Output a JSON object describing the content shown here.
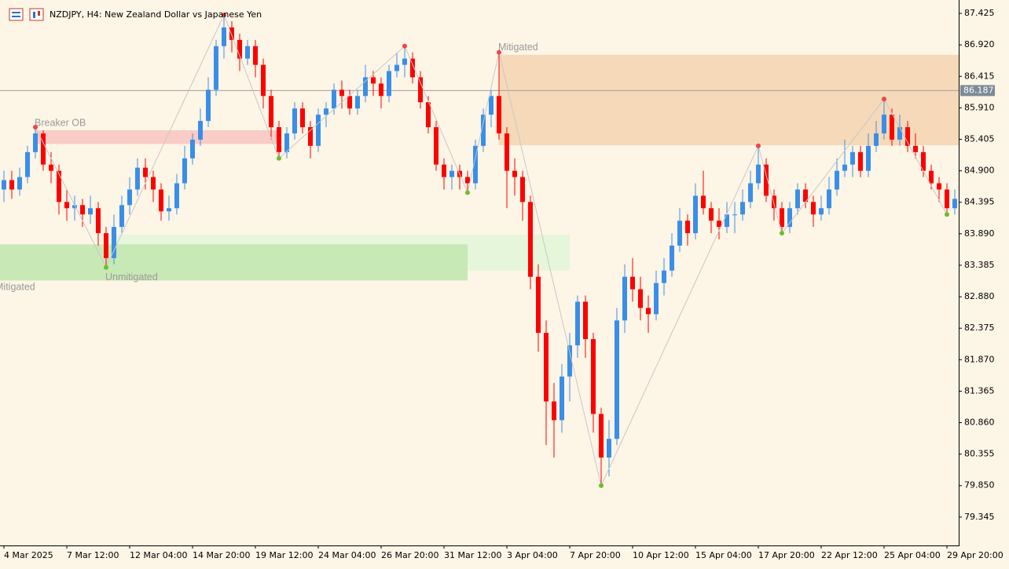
{
  "chart_data": {
    "type": "candlestick",
    "title": "NZDJPY, H4:  New Zealand Dollar vs Japanese Yen",
    "ylim": [
      78.89,
      87.64
    ],
    "yticks": [
      {
        "value": 87.425,
        "label": "87.425"
      },
      {
        "value": 86.92,
        "label": "86.920"
      },
      86.415,
      {
        "value": 85.91,
        "label": "85.910"
      },
      85.405,
      {
        "value": 84.9,
        "label": "84.900"
      },
      84.395,
      {
        "value": 83.89,
        "label": "83.890"
      },
      83.385,
      {
        "value": 82.88,
        "label": "82.880"
      },
      82.375,
      {
        "value": 81.87,
        "label": "81.870"
      },
      81.365,
      {
        "value": 80.86,
        "label": "80.860"
      },
      80.355,
      {
        "value": 79.85,
        "label": "79.850"
      },
      79.345
    ],
    "current_price": 86.187,
    "categories": [
      "4 Mar 2025",
      null,
      null,
      null,
      null,
      null,
      null,
      null,
      "7 Mar 12:00",
      null,
      null,
      null,
      null,
      null,
      null,
      null,
      "12 Mar 04:00",
      null,
      null,
      null,
      null,
      null,
      null,
      null,
      "14 Mar 20:00",
      null,
      null,
      null,
      null,
      null,
      null,
      null,
      "19 Mar 12:00",
      null,
      null,
      null,
      null,
      null,
      null,
      null,
      "24 Mar 04:00",
      null,
      null,
      null,
      null,
      null,
      null,
      null,
      "26 Mar 20:00",
      null,
      null,
      null,
      null,
      null,
      null,
      null,
      "31 Mar 12:00",
      null,
      null,
      null,
      null,
      null,
      null,
      null,
      "3 Apr 04:00",
      null,
      null,
      null,
      null,
      null,
      null,
      null,
      "7 Apr 20:00",
      null,
      null,
      null,
      null,
      null,
      null,
      null,
      "10 Apr 12:00",
      null,
      null,
      null,
      null,
      null,
      null,
      null,
      "15 Apr 04:00",
      null,
      null,
      null,
      null,
      null,
      null,
      null,
      "17 Apr 20:00",
      null,
      null,
      null,
      null,
      null,
      null,
      null,
      "22 Apr 12:00",
      null,
      null,
      null,
      null,
      null,
      null,
      null,
      "25 Apr 04:00",
      null,
      null,
      null,
      null,
      null,
      null,
      null,
      "29 Apr 20:00",
      null
    ],
    "series": [
      {
        "name": "NZDJPY",
        "up_color": "#3a8ee8",
        "down_color": "#ff0000",
        "ohlc": [
          [
            84.6,
            84.9,
            84.4,
            84.75
          ],
          [
            84.75,
            84.9,
            84.45,
            84.6
          ],
          [
            84.6,
            84.95,
            84.5,
            84.8
          ],
          [
            84.8,
            85.3,
            84.7,
            85.2
          ],
          [
            85.2,
            85.6,
            85.1,
            85.5
          ],
          [
            85.5,
            85.55,
            84.9,
            85.0
          ],
          [
            85.0,
            85.2,
            84.7,
            84.9
          ],
          [
            84.9,
            85.0,
            84.2,
            84.4
          ],
          [
            84.4,
            84.6,
            84.1,
            84.3
          ],
          [
            84.3,
            84.5,
            84.1,
            84.35
          ],
          [
            84.35,
            84.45,
            84.0,
            84.2
          ],
          [
            84.2,
            84.5,
            84.05,
            84.3
          ],
          [
            84.3,
            84.4,
            83.7,
            83.9
          ],
          [
            83.9,
            84.0,
            83.35,
            83.5
          ],
          [
            83.5,
            84.2,
            83.4,
            84.0
          ],
          [
            84.0,
            84.5,
            83.9,
            84.35
          ],
          [
            84.35,
            84.8,
            84.2,
            84.6
          ],
          [
            84.6,
            85.1,
            84.5,
            84.95
          ],
          [
            84.95,
            85.1,
            84.6,
            84.8
          ],
          [
            84.8,
            84.9,
            84.4,
            84.6
          ],
          [
            84.6,
            84.7,
            84.1,
            84.25
          ],
          [
            84.25,
            84.5,
            84.1,
            84.3
          ],
          [
            84.3,
            84.85,
            84.2,
            84.7
          ],
          [
            84.7,
            85.3,
            84.6,
            85.1
          ],
          [
            85.1,
            85.5,
            85.0,
            85.4
          ],
          [
            85.4,
            85.9,
            85.3,
            85.7
          ],
          [
            85.7,
            86.4,
            85.6,
            86.2
          ],
          [
            86.2,
            87.0,
            86.1,
            86.9
          ],
          [
            86.9,
            87.4,
            86.7,
            87.2
          ],
          [
            87.2,
            87.3,
            86.8,
            87.0
          ],
          [
            87.0,
            87.1,
            86.5,
            86.7
          ],
          [
            86.7,
            87.0,
            86.6,
            86.9
          ],
          [
            86.9,
            87.0,
            86.4,
            86.6
          ],
          [
            86.6,
            86.7,
            85.9,
            86.1
          ],
          [
            86.1,
            86.2,
            85.4,
            85.6
          ],
          [
            85.6,
            85.7,
            85.1,
            85.2
          ],
          [
            85.2,
            85.6,
            85.1,
            85.5
          ],
          [
            85.5,
            86.0,
            85.4,
            85.9
          ],
          [
            85.9,
            86.0,
            85.5,
            85.6
          ],
          [
            85.6,
            85.7,
            85.1,
            85.3
          ],
          [
            85.3,
            85.9,
            85.2,
            85.8
          ],
          [
            85.8,
            86.0,
            85.6,
            85.9
          ],
          [
            85.9,
            86.3,
            85.8,
            86.2
          ],
          [
            86.2,
            86.35,
            85.9,
            86.1
          ],
          [
            86.1,
            86.2,
            85.8,
            85.9
          ],
          [
            85.9,
            86.2,
            85.8,
            86.1
          ],
          [
            86.1,
            86.6,
            86.0,
            86.4
          ],
          [
            86.4,
            86.5,
            86.1,
            86.3
          ],
          [
            86.3,
            86.4,
            85.9,
            86.1
          ],
          [
            86.1,
            86.6,
            86.0,
            86.5
          ],
          [
            86.5,
            86.8,
            86.4,
            86.6
          ],
          [
            86.6,
            86.9,
            86.4,
            86.7
          ],
          [
            86.7,
            86.8,
            86.3,
            86.4
          ],
          [
            86.4,
            86.5,
            85.9,
            86.0
          ],
          [
            86.0,
            86.1,
            85.5,
            85.6
          ],
          [
            85.6,
            85.7,
            84.9,
            85.0
          ],
          [
            85.0,
            85.1,
            84.6,
            84.8
          ],
          [
            84.8,
            85.0,
            84.6,
            84.9
          ],
          [
            84.9,
            85.0,
            84.6,
            84.8
          ],
          [
            84.8,
            84.9,
            84.55,
            84.7
          ],
          [
            84.7,
            85.4,
            84.6,
            85.3
          ],
          [
            85.3,
            85.9,
            85.2,
            85.8
          ],
          [
            85.8,
            86.2,
            85.6,
            86.1
          ],
          [
            86.1,
            86.8,
            85.4,
            85.5
          ],
          [
            85.5,
            85.6,
            84.3,
            84.9
          ],
          [
            84.9,
            85.1,
            84.5,
            84.8
          ],
          [
            84.8,
            84.9,
            84.1,
            84.4
          ],
          [
            84.4,
            84.5,
            83.0,
            83.2
          ],
          [
            83.2,
            83.4,
            82.0,
            82.3
          ],
          [
            82.3,
            82.5,
            80.5,
            81.2
          ],
          [
            81.2,
            81.5,
            80.3,
            80.9
          ],
          [
            80.9,
            81.8,
            80.7,
            81.6
          ],
          [
            81.6,
            82.3,
            81.2,
            82.1
          ],
          [
            82.1,
            82.9,
            81.9,
            82.8
          ],
          [
            82.8,
            82.9,
            81.9,
            82.2
          ],
          [
            82.2,
            82.3,
            80.7,
            81.0
          ],
          [
            81.0,
            81.1,
            79.85,
            80.3
          ],
          [
            80.3,
            80.9,
            80.0,
            80.6
          ],
          [
            80.6,
            82.7,
            80.5,
            82.5
          ],
          [
            82.5,
            83.4,
            82.3,
            83.2
          ],
          [
            83.2,
            83.5,
            82.8,
            83.0
          ],
          [
            83.0,
            83.2,
            82.5,
            82.7
          ],
          [
            82.7,
            82.9,
            82.3,
            82.6
          ],
          [
            82.6,
            83.3,
            82.5,
            83.1
          ],
          [
            83.1,
            83.5,
            82.9,
            83.3
          ],
          [
            83.3,
            83.9,
            83.2,
            83.7
          ],
          [
            83.7,
            84.3,
            83.6,
            84.1
          ],
          [
            84.1,
            84.2,
            83.7,
            83.9
          ],
          [
            83.9,
            84.7,
            83.8,
            84.5
          ],
          [
            84.5,
            84.9,
            84.2,
            84.3
          ],
          [
            84.3,
            84.4,
            83.9,
            84.1
          ],
          [
            84.1,
            84.3,
            83.8,
            84.0
          ],
          [
            84.0,
            84.4,
            83.9,
            84.2
          ],
          [
            84.2,
            84.4,
            83.9,
            84.2
          ],
          [
            84.2,
            84.6,
            84.1,
            84.4
          ],
          [
            84.4,
            84.9,
            84.3,
            84.7
          ],
          [
            84.7,
            85.3,
            84.6,
            85.0
          ],
          [
            85.0,
            85.1,
            84.4,
            84.5
          ],
          [
            84.5,
            84.6,
            84.1,
            84.3
          ],
          [
            84.3,
            84.4,
            83.9,
            84.0
          ],
          [
            84.0,
            84.4,
            83.9,
            84.3
          ],
          [
            84.3,
            84.7,
            84.2,
            84.6
          ],
          [
            84.6,
            84.7,
            84.3,
            84.4
          ],
          [
            84.4,
            84.5,
            84.0,
            84.2
          ],
          [
            84.2,
            84.5,
            84.1,
            84.3
          ],
          [
            84.3,
            84.8,
            84.2,
            84.6
          ],
          [
            84.6,
            85.1,
            84.5,
            84.9
          ],
          [
            84.9,
            85.4,
            84.8,
            85.0
          ],
          [
            85.0,
            85.3,
            84.8,
            85.2
          ],
          [
            85.2,
            85.3,
            84.8,
            84.9
          ],
          [
            84.9,
            85.5,
            84.8,
            85.3
          ],
          [
            85.3,
            85.7,
            85.2,
            85.5
          ],
          [
            85.5,
            86.05,
            85.4,
            85.8
          ],
          [
            85.8,
            85.9,
            85.3,
            85.4
          ],
          [
            85.4,
            85.8,
            85.3,
            85.6
          ],
          [
            85.6,
            85.7,
            85.2,
            85.3
          ],
          [
            85.3,
            85.5,
            85.1,
            85.2
          ],
          [
            85.2,
            85.3,
            84.8,
            84.9
          ],
          [
            84.9,
            85.0,
            84.6,
            84.7
          ],
          [
            84.7,
            84.8,
            84.4,
            84.6
          ],
          [
            84.6,
            84.7,
            84.2,
            84.3
          ],
          [
            84.3,
            84.6,
            84.2,
            84.45
          ]
        ]
      }
    ],
    "swings": [
      {
        "bar": 4,
        "price": 85.6,
        "kind": "high"
      },
      {
        "bar": 13,
        "price": 83.35,
        "kind": "low"
      },
      {
        "bar": 28,
        "price": 87.4,
        "kind": "high"
      },
      {
        "bar": 35,
        "price": 85.1,
        "kind": "low"
      },
      {
        "bar": 51,
        "price": 86.9,
        "kind": "high"
      },
      {
        "bar": 59,
        "price": 84.55,
        "kind": "low"
      },
      {
        "bar": 63,
        "price": 86.8,
        "kind": "high"
      },
      {
        "bar": 76,
        "price": 79.85,
        "kind": "low"
      },
      {
        "bar": 96,
        "price": 85.3,
        "kind": "high"
      },
      {
        "bar": 99,
        "price": 83.9,
        "kind": "low"
      },
      {
        "bar": 112,
        "price": 86.05,
        "kind": "high"
      },
      {
        "bar": 120,
        "price": 84.2,
        "kind": "low"
      }
    ],
    "zones": [
      {
        "label": "Unmitigated",
        "top": 83.88,
        "bottom": 83.3,
        "from": 13,
        "to": 72,
        "color": "#e3f6d8",
        "label_pos": "below"
      },
      {
        "label": "Mitigated",
        "top": 83.72,
        "bottom": 83.14,
        "from": -1,
        "to": 59,
        "color": "#c2e8b0",
        "label_pos": "below"
      },
      {
        "label": "Breaker OB",
        "top": 85.55,
        "bottom": 85.33,
        "from": 4,
        "to": 35,
        "color": "#f8c8c2",
        "label_pos": "above"
      },
      {
        "label": "Mitigated",
        "top": 86.76,
        "bottom": 85.31,
        "from": 63,
        "to": 122,
        "color": "#f5d6b3",
        "label_pos": "above"
      }
    ]
  }
}
